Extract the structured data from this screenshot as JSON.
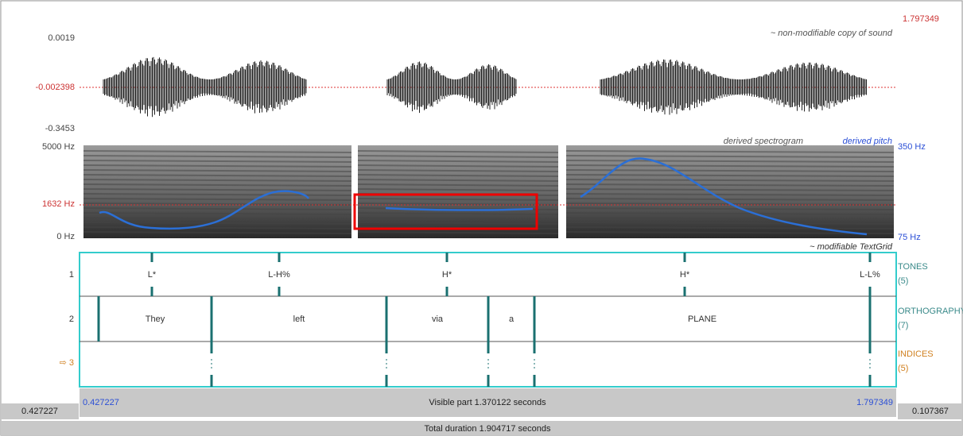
{
  "window": {
    "end_time_top": "1.797349",
    "sound_caption": "~ non-modifiable copy of sound",
    "textgrid_caption": "~ modifiable TextGrid",
    "spectrogram_caption": "derived spectrogram",
    "pitch_caption": "derived pitch"
  },
  "waveform_axis": {
    "top": "0.0019",
    "cursor": "-0.002398",
    "bottom": "-0.3453"
  },
  "spectrogram_axis": {
    "top": "5000 Hz",
    "cursor": "1632 Hz",
    "bottom": "0 Hz",
    "pitch_top": "350 Hz",
    "pitch_bottom": "75 Hz"
  },
  "tiers": [
    {
      "number": "1",
      "name": "TONES",
      "count": "(5)",
      "labels": [
        "L*",
        "L-H%",
        "H*",
        "H*",
        "L-L%"
      ]
    },
    {
      "number": "2",
      "name": "ORTHOGRAPHY",
      "count": "(7)",
      "labels": [
        "They",
        "left",
        "via",
        "a",
        "PLANE"
      ]
    },
    {
      "number": "⇨ 3",
      "name": "INDICES",
      "count": "(5)",
      "labels": []
    }
  ],
  "footer": {
    "visible_start": "0.427227",
    "visible_part": "Visible part 1.370122 seconds",
    "visible_end": "1.797349",
    "left_time": "0.427227",
    "right_time": "0.107367",
    "total_duration": "Total duration 1.904717 seconds"
  }
}
